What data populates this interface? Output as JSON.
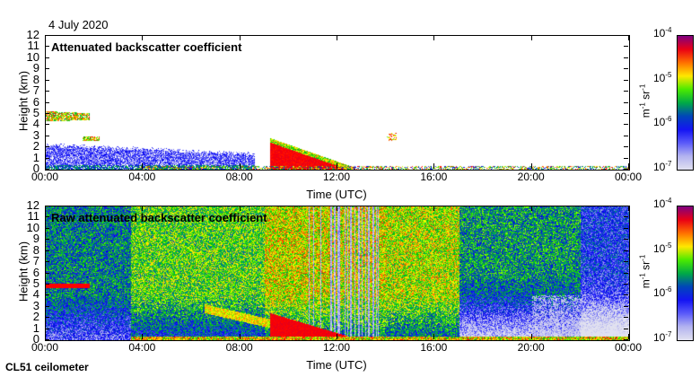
{
  "header": {
    "date": "4 July 2020"
  },
  "footer": {
    "instrument": "CL51 ceilometer"
  },
  "chart_data": [
    {
      "type": "heatmap",
      "title": "Attenuated backscatter coefficient",
      "xlabel": "Time (UTC)",
      "ylabel": "Height (km)",
      "xticks": [
        "00:00",
        "04:00",
        "08:00",
        "12:00",
        "16:00",
        "20:00",
        "00:00"
      ],
      "xlim_hours": [
        0,
        24
      ],
      "yticks": [
        "0",
        "1",
        "2",
        "3",
        "4",
        "5",
        "6",
        "7",
        "8",
        "9",
        "10",
        "11",
        "12"
      ],
      "ylim_km": [
        0,
        12
      ],
      "colorbar": {
        "label_unit": "m",
        "label_unit_exp": "-1",
        "label_unit2": "sr",
        "label_unit2_exp": "-1",
        "scale": "log",
        "range": [
          1e-07,
          0.0001
        ],
        "ticks": [
          {
            "base": "10",
            "exp": "-4"
          },
          {
            "base": "10",
            "exp": "-5"
          },
          {
            "base": "10",
            "exp": "-6"
          },
          {
            "base": "10",
            "exp": "-7"
          }
        ]
      },
      "features": [
        {
          "kind": "cloud",
          "t": [
            0,
            1.8
          ],
          "h": [
            4.3,
            5.2
          ]
        },
        {
          "kind": "cloud",
          "t": [
            1.5,
            2.2
          ],
          "h": [
            2.5,
            2.9
          ]
        },
        {
          "kind": "aerosol",
          "t": [
            0,
            8.6
          ],
          "h": [
            0,
            2
          ]
        },
        {
          "kind": "boundary_layer",
          "t": [
            9.2,
            12.6
          ],
          "h_top": [
            2.8,
            0.2
          ]
        },
        {
          "kind": "cloud",
          "t": [
            14,
            14.4
          ],
          "h": [
            2.5,
            3.3
          ]
        }
      ]
    },
    {
      "type": "heatmap",
      "title": "Raw attenuated backscatter coefficient",
      "xlabel": "Time (UTC)",
      "ylabel": "Height (km)",
      "xticks": [
        "00:00",
        "04:00",
        "08:00",
        "12:00",
        "16:00",
        "20:00",
        "00:00"
      ],
      "xlim_hours": [
        0,
        24
      ],
      "yticks": [
        "0",
        "1",
        "2",
        "3",
        "4",
        "5",
        "6",
        "7",
        "8",
        "9",
        "10",
        "11",
        "12"
      ],
      "ylim_km": [
        0,
        12
      ],
      "colorbar": {
        "label_unit": "m",
        "label_unit_exp": "-1",
        "label_unit2": "sr",
        "label_unit2_exp": "-1",
        "scale": "log",
        "range": [
          1e-07,
          0.0001
        ],
        "ticks": [
          {
            "base": "10",
            "exp": "-4"
          },
          {
            "base": "10",
            "exp": "-5"
          },
          {
            "base": "10",
            "exp": "-6"
          },
          {
            "base": "10",
            "exp": "-7"
          }
        ]
      },
      "features": [
        {
          "kind": "cloud",
          "t": [
            0,
            1.8
          ],
          "h": [
            4.6,
            5.0
          ]
        },
        {
          "kind": "elevated_layer",
          "t": [
            6.5,
            9.2
          ],
          "h_top": [
            3.2,
            1.8
          ]
        },
        {
          "kind": "boundary_layer",
          "t": [
            9.2,
            12.6
          ],
          "h_top": [
            2.4,
            0.2
          ]
        },
        {
          "kind": "noise_streaks",
          "t": [
            11,
            14
          ]
        }
      ]
    }
  ]
}
